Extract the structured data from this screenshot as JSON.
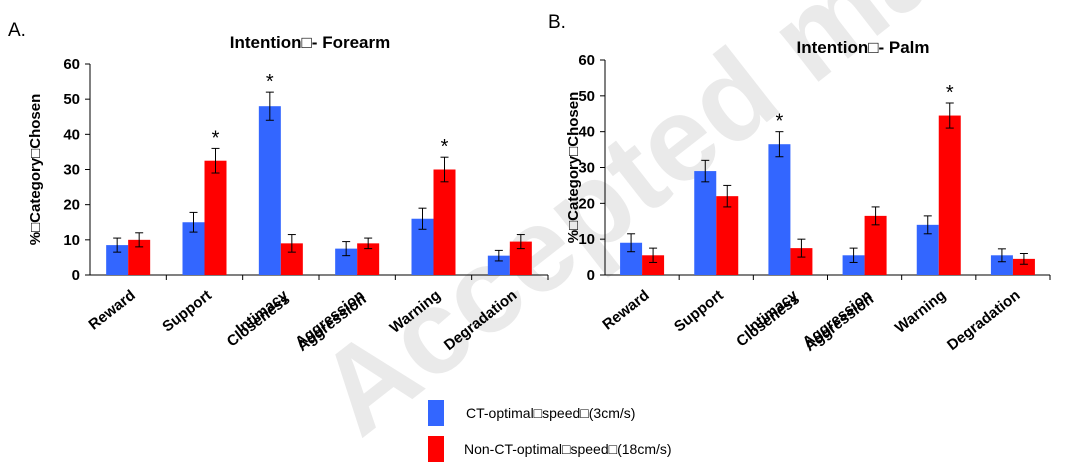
{
  "colors": {
    "series1": "#3366ff",
    "series2": "#ff0000",
    "watermark": "#d9d9d9"
  },
  "watermark_text": "Accepted manuscript",
  "legend": [
    {
      "label": "CT-optimal□speed□(3cm/s)",
      "color": "#3366ff"
    },
    {
      "label": "Non-CT-optimal□speed□(18cm/s)",
      "color": "#ff0000"
    }
  ],
  "chart_data": [
    {
      "type": "bar",
      "panel": "A.",
      "title": "Intention□- Forearm",
      "ylabel": "%□Category□Chosen",
      "xlabel": "",
      "ylim": [
        0,
        60
      ],
      "yticks": [
        0,
        10,
        20,
        30,
        40,
        50,
        60
      ],
      "grid": false,
      "categories": [
        "Reward",
        "Support",
        "Intimacy",
        "Aggression",
        "Warning",
        "Degradation"
      ],
      "category_overlays": [
        "",
        "",
        "Closeness",
        "Aggression",
        "",
        ""
      ],
      "series": [
        {
          "values": [
            8.5,
            15,
            48,
            7.5,
            16,
            5.5
          ],
          "errors": [
            2,
            2.8,
            4,
            2,
            3,
            1.5
          ]
        },
        {
          "values": [
            10,
            32.5,
            9,
            9,
            30,
            9.5
          ],
          "errors": [
            2,
            3.5,
            2.5,
            1.5,
            3.5,
            2
          ]
        }
      ],
      "significance": [
        {
          "category": "Support",
          "series": 1,
          "label": "*"
        },
        {
          "category": "Intimacy",
          "series": 0,
          "label": "*"
        },
        {
          "category": "Warning",
          "series": 1,
          "label": "*"
        }
      ]
    },
    {
      "type": "bar",
      "panel": "B.",
      "title": "Intention□- Palm",
      "ylabel": "%□Category□Chosen",
      "xlabel": "",
      "ylim": [
        0,
        60
      ],
      "yticks": [
        0,
        10,
        20,
        30,
        40,
        50,
        60
      ],
      "grid": false,
      "categories": [
        "Reward",
        "Support",
        "Intimacy",
        "Aggression",
        "Warning",
        "Degradation"
      ],
      "category_overlays": [
        "",
        "",
        "Closeness",
        "Aggression",
        "",
        ""
      ],
      "series": [
        {
          "values": [
            9,
            29,
            36.5,
            5.5,
            14,
            5.5
          ],
          "errors": [
            2.5,
            3,
            3.5,
            2,
            2.5,
            1.8
          ]
        },
        {
          "values": [
            5.5,
            22,
            7.5,
            16.5,
            44.5,
            4.5
          ],
          "errors": [
            2,
            3,
            2.5,
            2.5,
            3.5,
            1.5
          ]
        }
      ],
      "significance": [
        {
          "category": "Intimacy",
          "series": 0,
          "label": "*"
        },
        {
          "category": "Warning",
          "series": 1,
          "label": "*"
        }
      ]
    }
  ]
}
